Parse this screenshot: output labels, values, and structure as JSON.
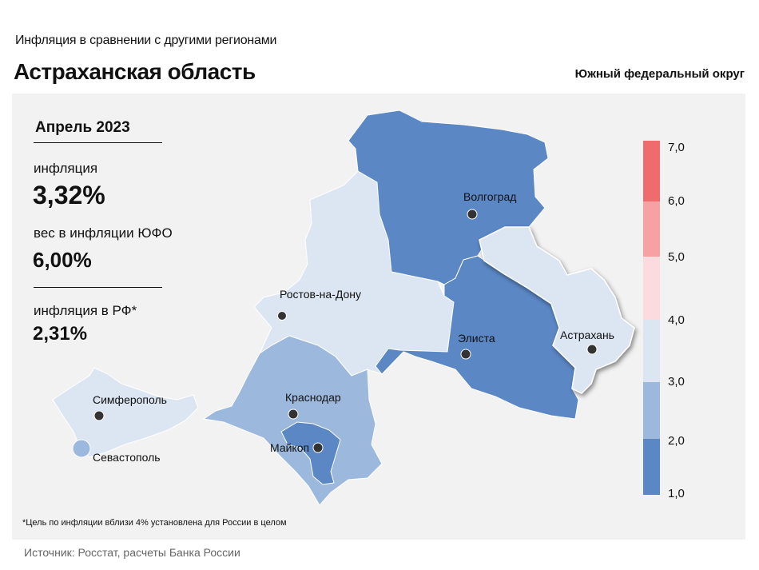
{
  "header": {
    "subtitle": "Инфляция  в сравнении  с другими  регионами",
    "title": "Астраханская область",
    "district": "Южный федеральный округ"
  },
  "stats": {
    "period": "Апрель 2023",
    "inflation_label": "инфляция",
    "inflation_value": "3,32%",
    "weight_label": "вес в инфляции  ЮФО",
    "weight_value": "6,00%",
    "rf_label": "инфляция  в РФ*",
    "rf_value": "2,31%"
  },
  "cities": {
    "volgograd": "Волгоград",
    "rostov": "Ростов-на-Дону",
    "elista": "Элиста",
    "astrakhan": "Астрахань",
    "simferopol": "Симферополь",
    "sevastopol": "Севастополь",
    "krasnodar": "Краснодар",
    "maykop": "Майкоп"
  },
  "colors": {
    "bin_1_2": "#5b87c5",
    "bin_2_3": "#9cb8dc",
    "bin_3_4": "#dce5f2",
    "bin_4_5": "#fbdbdf",
    "bin_5_6": "#f7a1a5",
    "bin_6_7": "#f06b6d",
    "highlight_region": "Астраханская область"
  },
  "legend": {
    "ticks": [
      "7,0",
      "6,0",
      "5,0",
      "4,0",
      "3,0",
      "2,0",
      "1,0"
    ]
  },
  "footnote": "*Цель по инфляции вблизи 4% установлена для России в целом",
  "source": "Источник: Росстат, расчеты Банка России"
}
